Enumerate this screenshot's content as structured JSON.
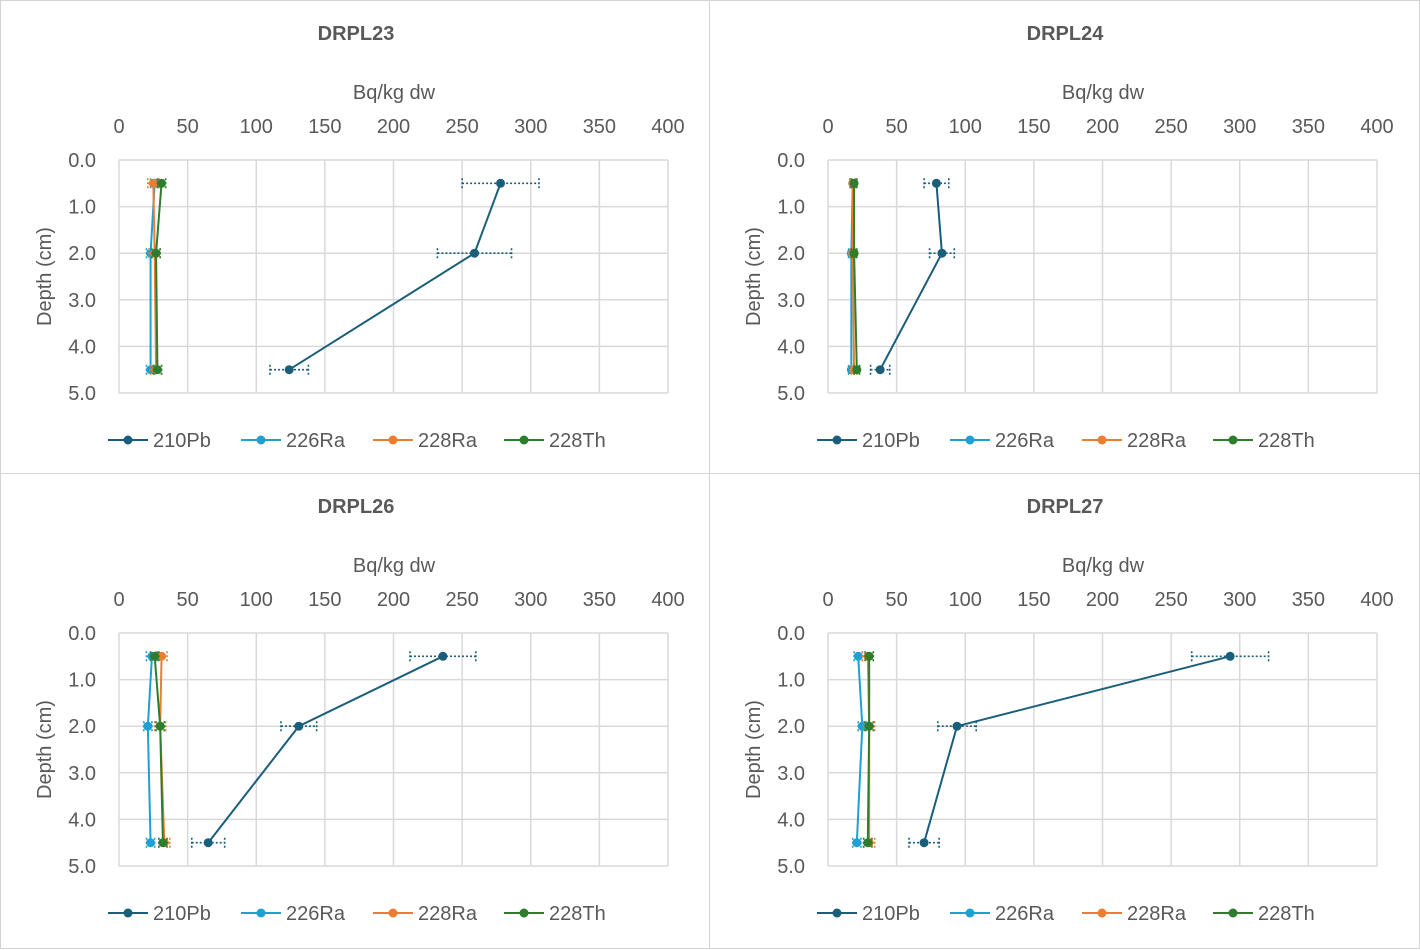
{
  "colors": {
    "210Pb": "#1a5f7a",
    "226Ra": "#1ea0d2",
    "228Ra": "#ed7d31",
    "228Th": "#2e7d2e",
    "grid": "#d9d9d9",
    "text": "#595959"
  },
  "chart_data": [
    {
      "type": "line",
      "title": "DRPL23",
      "xlabel": "Bq/kg dw",
      "ylabel": "Depth (cm)",
      "xlim": [
        0,
        400
      ],
      "ylim": [
        0,
        5
      ],
      "x_ticks": [
        "0",
        "50",
        "100",
        "150",
        "200",
        "250",
        "300",
        "350",
        "400"
      ],
      "y_ticks": [
        "0.0",
        "1.0",
        "2.0",
        "3.0",
        "4.0",
        "5.0"
      ],
      "depths": [
        0.5,
        2.0,
        4.5
      ],
      "legend": [
        "210Pb",
        "226Ra",
        "228Ra",
        "228Th"
      ],
      "series": [
        {
          "name": "210Pb",
          "values": [
            278,
            259,
            124
          ],
          "errors": [
            28,
            27,
            14
          ]
        },
        {
          "name": "226Ra",
          "values": [
            26,
            23,
            23
          ],
          "errors": [
            3,
            3,
            3
          ]
        },
        {
          "name": "228Ra",
          "values": [
            25,
            26,
            27
          ],
          "errors": [
            4,
            4,
            4
          ]
        },
        {
          "name": "228Th",
          "values": [
            31,
            27,
            28
          ],
          "errors": [
            3,
            3,
            3
          ]
        }
      ]
    },
    {
      "type": "line",
      "title": "DRPL24",
      "xlabel": "Bq/kg dw",
      "ylabel": "Depth (cm)",
      "xlim": [
        0,
        400
      ],
      "ylim": [
        0,
        5
      ],
      "x_ticks": [
        "0",
        "50",
        "100",
        "150",
        "200",
        "250",
        "300",
        "350",
        "400"
      ],
      "y_ticks": [
        "0.0",
        "1.0",
        "2.0",
        "3.0",
        "4.0",
        "5.0"
      ],
      "depths": [
        0.5,
        2.0,
        4.5
      ],
      "legend": [
        "210Pb",
        "226Ra",
        "228Ra",
        "228Th"
      ],
      "series": [
        {
          "name": "210Pb",
          "values": [
            79,
            83,
            38
          ],
          "errors": [
            9,
            9,
            7
          ]
        },
        {
          "name": "226Ra",
          "values": [
            18,
            17,
            17
          ],
          "errors": [
            2,
            2,
            2
          ]
        },
        {
          "name": "228Ra",
          "values": [
            18,
            18,
            19
          ],
          "errors": [
            2,
            2,
            2
          ]
        },
        {
          "name": "228Th",
          "values": [
            19,
            19,
            21
          ],
          "errors": [
            2,
            2,
            2
          ]
        }
      ]
    },
    {
      "type": "line",
      "title": "DRPL26",
      "xlabel": "Bq/kg dw",
      "ylabel": "Depth (cm)",
      "xlim": [
        0,
        400
      ],
      "ylim": [
        0,
        5
      ],
      "x_ticks": [
        "0",
        "50",
        "100",
        "150",
        "200",
        "250",
        "300",
        "350",
        "400"
      ],
      "y_ticks": [
        "0.0",
        "1.0",
        "2.0",
        "3.0",
        "4.0",
        "5.0"
      ],
      "depths": [
        0.5,
        2.0,
        4.5
      ],
      "legend": [
        "210Pb",
        "226Ra",
        "228Ra",
        "228Th"
      ],
      "series": [
        {
          "name": "210Pb",
          "values": [
            236,
            131,
            65
          ],
          "errors": [
            24,
            13,
            12
          ]
        },
        {
          "name": "226Ra",
          "values": [
            24,
            21,
            23
          ],
          "errors": [
            4,
            3,
            3
          ]
        },
        {
          "name": "228Ra",
          "values": [
            31,
            30,
            33
          ],
          "errors": [
            4,
            4,
            4
          ]
        },
        {
          "name": "228Th",
          "values": [
            26,
            30,
            32
          ],
          "errors": [
            3,
            3,
            3
          ]
        }
      ]
    },
    {
      "type": "line",
      "title": "DRPL27",
      "xlabel": "Bq/kg dw",
      "ylabel": "Depth (cm)",
      "xlim": [
        0,
        400
      ],
      "ylim": [
        0,
        5
      ],
      "x_ticks": [
        "0",
        "50",
        "100",
        "150",
        "200",
        "250",
        "300",
        "350",
        "400"
      ],
      "y_ticks": [
        "0.0",
        "1.0",
        "2.0",
        "3.0",
        "4.0",
        "5.0"
      ],
      "depths": [
        0.5,
        2.0,
        4.5
      ],
      "legend": [
        "210Pb",
        "226Ra",
        "228Ra",
        "228Th"
      ],
      "series": [
        {
          "name": "210Pb",
          "values": [
            293,
            94,
            70
          ],
          "errors": [
            28,
            14,
            11
          ]
        },
        {
          "name": "226Ra",
          "values": [
            22,
            25,
            21
          ],
          "errors": [
            3,
            3,
            3
          ]
        },
        {
          "name": "228Ra",
          "values": [
            29,
            30,
            30
          ],
          "errors": [
            4,
            4,
            4
          ]
        },
        {
          "name": "228Th",
          "values": [
            30,
            30,
            29
          ],
          "errors": [
            3,
            3,
            3
          ]
        }
      ]
    }
  ]
}
